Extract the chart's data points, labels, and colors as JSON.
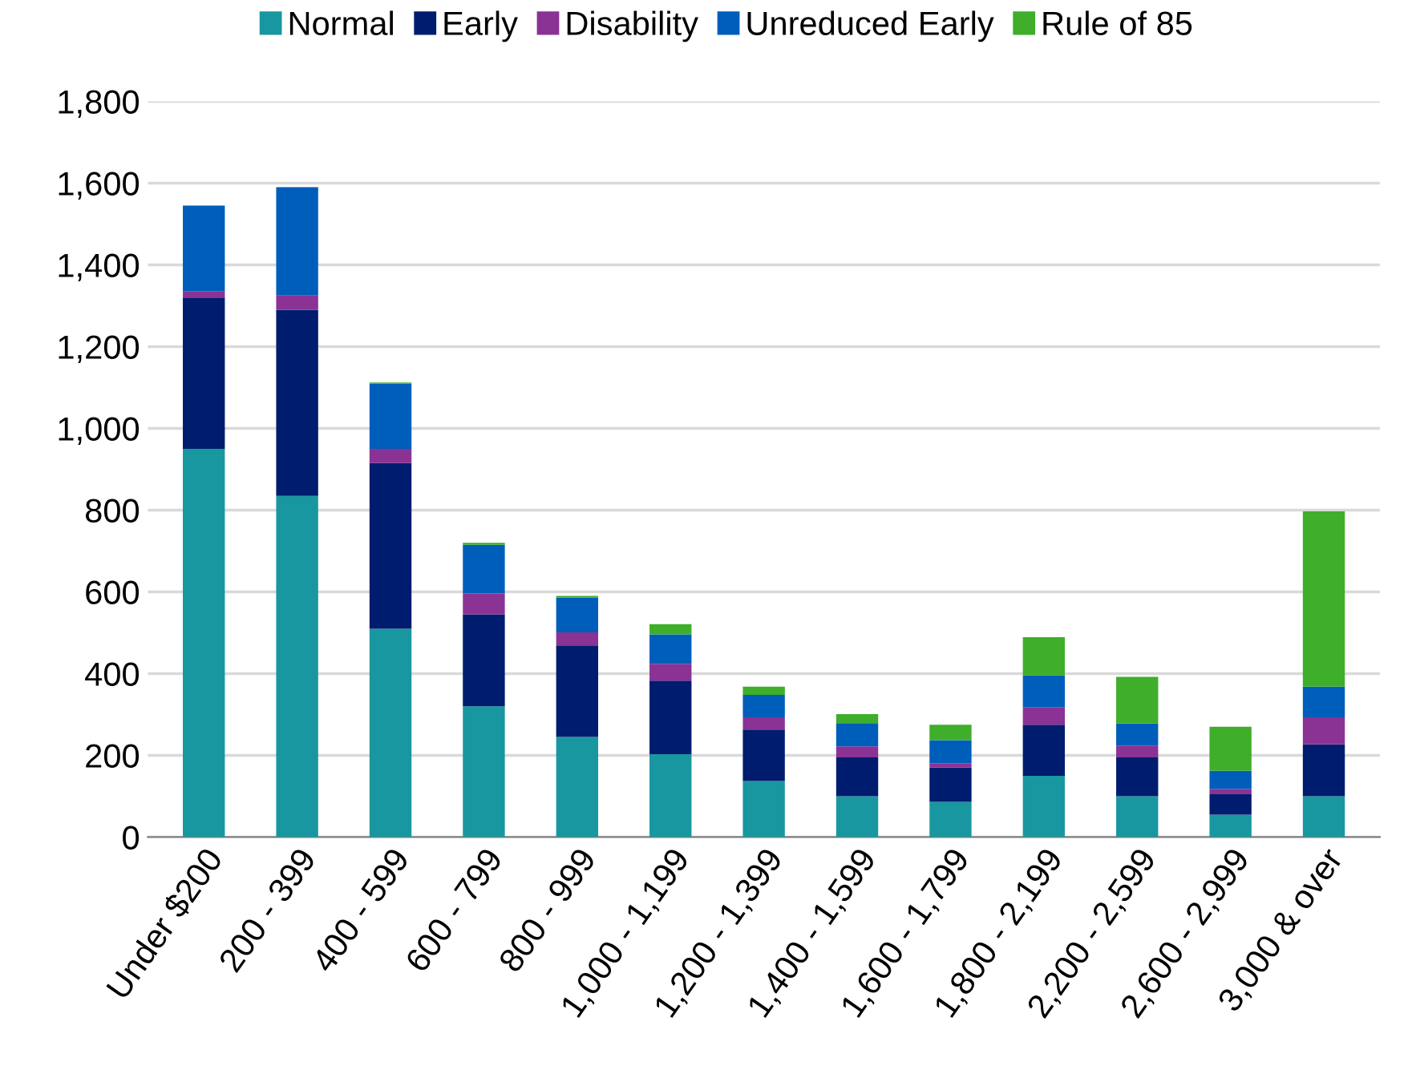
{
  "chart_data": {
    "type": "bar",
    "stacked": true,
    "legend": "top",
    "grid": "y",
    "categories": [
      "Under $200",
      "200 - 399",
      "400 - 599",
      "600 - 799",
      "800 - 999",
      "1,000 - 1,199",
      "1,200 - 1,399",
      "1,400 - 1,599",
      "1,600 - 1,799",
      "1,800 - 2,199",
      "2,200 - 2,599",
      "2,600 - 2,999",
      "3,000 & over"
    ],
    "ylim": [
      0,
      1800
    ],
    "yticks": [
      {
        "value": 0,
        "label": "0"
      },
      {
        "value": 200,
        "label": "200"
      },
      {
        "value": 400,
        "label": "400"
      },
      {
        "value": 600,
        "label": "600"
      },
      {
        "value": 800,
        "label": "800"
      },
      {
        "value": 1000,
        "label": "1,000"
      },
      {
        "value": 1200,
        "label": "1,200"
      },
      {
        "value": 1400,
        "label": "1,400"
      },
      {
        "value": 1600,
        "label": "1,600"
      },
      {
        "value": 1800,
        "label": "1,800"
      }
    ],
    "series": [
      {
        "name": "Normal",
        "color": "#1897a0",
        "values": [
          950,
          835,
          510,
          320,
          245,
          203,
          137,
          100,
          86,
          150,
          100,
          55,
          100
        ]
      },
      {
        "name": "Early",
        "color": "#001c6e",
        "values": [
          370,
          455,
          405,
          225,
          224,
          180,
          126,
          95,
          84,
          125,
          95,
          50,
          127
        ]
      },
      {
        "name": "Disability",
        "color": "#8a3394",
        "values": [
          15,
          35,
          35,
          51,
          32,
          41,
          30,
          27,
          11,
          43,
          29,
          13,
          66
        ]
      },
      {
        "name": "Unreduced Early",
        "color": "#005ebb",
        "values": [
          210,
          265,
          160,
          119,
          85,
          72,
          55,
          57,
          56,
          78,
          54,
          44,
          75
        ]
      },
      {
        "name": "Rule of 85",
        "color": "#3fae2a",
        "values": [
          0,
          0,
          2,
          5,
          4,
          25,
          20,
          22,
          38,
          93,
          114,
          108,
          429
        ]
      }
    ]
  }
}
